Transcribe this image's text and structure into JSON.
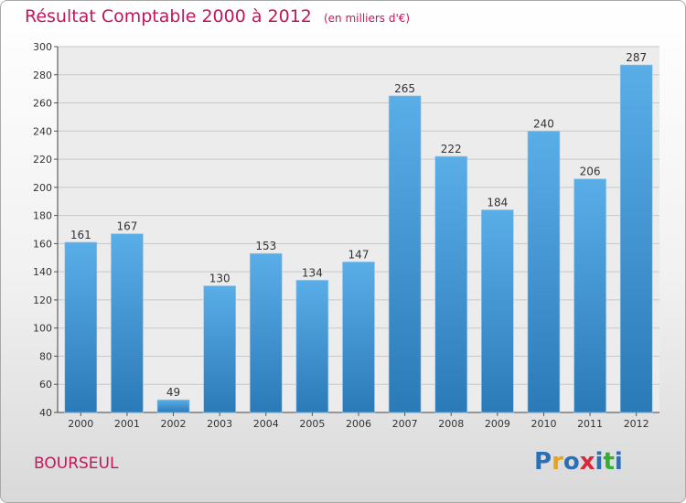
{
  "chart_data": {
    "type": "bar",
    "title": "Résultat Comptable 2000 à 2012",
    "subtitle": "(en milliers d'€)",
    "categories": [
      "2000",
      "2001",
      "2002",
      "2003",
      "2004",
      "2005",
      "2006",
      "2007",
      "2008",
      "2009",
      "2010",
      "2011",
      "2012"
    ],
    "values": [
      161,
      167,
      49,
      130,
      153,
      134,
      147,
      265,
      222,
      184,
      240,
      206,
      287
    ],
    "ylim": [
      40,
      300
    ],
    "yticks": [
      40,
      60,
      80,
      100,
      120,
      140,
      160,
      180,
      200,
      220,
      240,
      260,
      280,
      300
    ],
    "grid": true,
    "colors": {
      "bar_light": "#5aaee8",
      "bar_dark": "#2b7ab8",
      "title": "#c2185b"
    }
  },
  "footer": {
    "commune": "BOURSEUL",
    "logo": "Proxiti",
    "logo_colors": [
      "#2c6fb5",
      "#e8a317",
      "#2c6fb5",
      "#d9283b",
      "#2c6fb5",
      "#3aa935",
      "#2c6fb5"
    ]
  }
}
